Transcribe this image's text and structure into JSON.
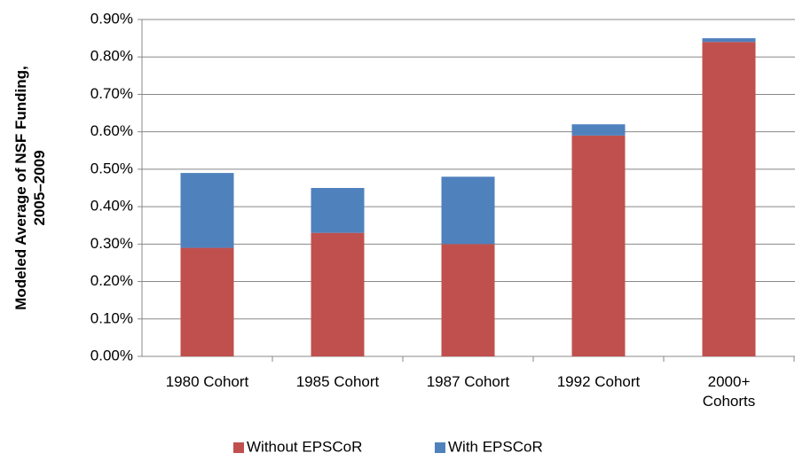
{
  "chart_data": {
    "type": "stacked_bar",
    "y_label": "Modeled Average of NSF Funding,\n2005–2009",
    "categories": [
      "1980 Cohort",
      "1985 Cohort",
      "1987 Cohort",
      "1992 Cohort",
      "2000+\nCohorts"
    ],
    "series": [
      {
        "name": "Without EPSCoR",
        "color": "#c0504d",
        "values": [
          0.29,
          0.33,
          0.3,
          0.59,
          0.84
        ]
      },
      {
        "name": "With EPSCoR",
        "color": "#4f81bd",
        "values": [
          0.2,
          0.12,
          0.18,
          0.03,
          0.01
        ]
      }
    ],
    "ylim": [
      0,
      0.9
    ],
    "yticks": [
      {
        "value": 0,
        "label": "0.00%"
      },
      {
        "value": 0.1,
        "label": "0.10%"
      },
      {
        "value": 0.2,
        "label": "0.20%"
      },
      {
        "value": 0.3,
        "label": "0.30%"
      },
      {
        "value": 0.4,
        "label": "0.40%"
      },
      {
        "value": 0.5,
        "label": "0.50%"
      },
      {
        "value": 0.6,
        "label": "0.60%"
      },
      {
        "value": 0.7,
        "label": "0.70%"
      },
      {
        "value": 0.8,
        "label": "0.80%"
      },
      {
        "value": 0.9,
        "label": "0.90%"
      }
    ],
    "grid": true,
    "legend": "bottom"
  }
}
